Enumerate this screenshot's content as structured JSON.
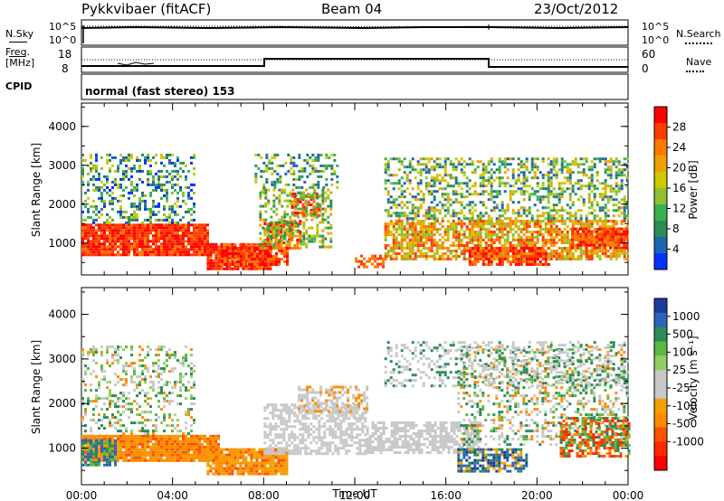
{
  "header": {
    "station": "Pykkvibaer (fitACF)",
    "beam": "Beam 04",
    "date": "23/Oct/2012"
  },
  "status_panels": {
    "nsky_label": "N.Sky",
    "nsky_ticks": [
      "10^5",
      "10^0"
    ],
    "nsearch_label": "N.Search",
    "nsearch_ticks": [
      "10^5",
      "10^0"
    ],
    "freq_label_1": "Freq.",
    "freq_label_2": "[MHz]",
    "freq_ticks": [
      "18",
      "8"
    ],
    "nave_label": "Nave",
    "nave_ticks": [
      "60",
      "0"
    ],
    "cpid_label": "CPID",
    "cpid_text": "normal (fast stereo) 153"
  },
  "chart_data": [
    {
      "type": "heatmap",
      "name": "power",
      "ylabel": "Slant Range [km]",
      "y_ticks": [
        1000,
        2000,
        3000,
        4000
      ],
      "ylim": [
        180,
        4600
      ],
      "xlim_hours": [
        0,
        24
      ],
      "colorbar_label": "Power [dB]",
      "colorbar_ticks": [
        "28",
        "24",
        "20",
        "16",
        "12",
        "8",
        "4"
      ],
      "colorbar_colors": [
        "#ff0000",
        "#ff3c00",
        "#ff7800",
        "#f0a000",
        "#d0c800",
        "#90c030",
        "#3cb050",
        "#2e8b57",
        "#1e64b4",
        "#0032ff"
      ]
    },
    {
      "type": "heatmap",
      "name": "velocity",
      "ylabel": "Slant Range [km]",
      "y_ticks": [
        1000,
        2000,
        3000,
        4000
      ],
      "ylim": [
        180,
        4600
      ],
      "xlim_hours": [
        0,
        24
      ],
      "xlabel": "Time UT",
      "x_ticks": [
        "00:00",
        "04:00",
        "08:00",
        "12:00",
        "16:00",
        "20:00",
        "00:00"
      ],
      "colorbar_label": "Velocity [m s⁻¹]",
      "colorbar_ticks": [
        "1000",
        "500",
        "100",
        "25",
        "-25",
        "-100",
        "-500",
        "-1000"
      ],
      "colorbar_colors": [
        "#1a3c9c",
        "#2a64b8",
        "#2e8b57",
        "#5cb840",
        "#90d060",
        "#c8c8c8",
        "#c8c8c8",
        "#f0a000",
        "#ff8c00",
        "#ff5000",
        "#ff2800",
        "#ff0000"
      ]
    }
  ]
}
